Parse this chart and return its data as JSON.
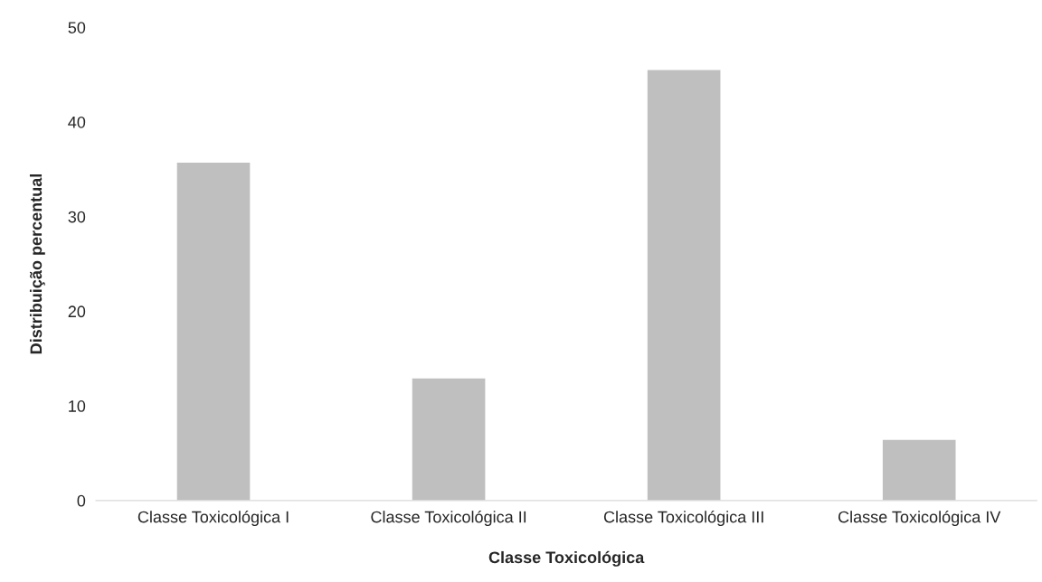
{
  "chart_data": {
    "type": "bar",
    "xlabel": "Classe Toxicológica",
    "ylabel": "Distribuição percentual",
    "categories": [
      "Classe Toxicológica I",
      "Classe Toxicológica II",
      "Classe Toxicológica III",
      "Classe Toxicológica IV"
    ],
    "values": [
      35.7,
      12.9,
      45.5,
      6.4
    ],
    "color": "#bfbfbf",
    "ylim": [
      0,
      50
    ],
    "yticks": [
      0,
      10,
      20,
      30,
      40,
      50
    ],
    "grid": false
  }
}
